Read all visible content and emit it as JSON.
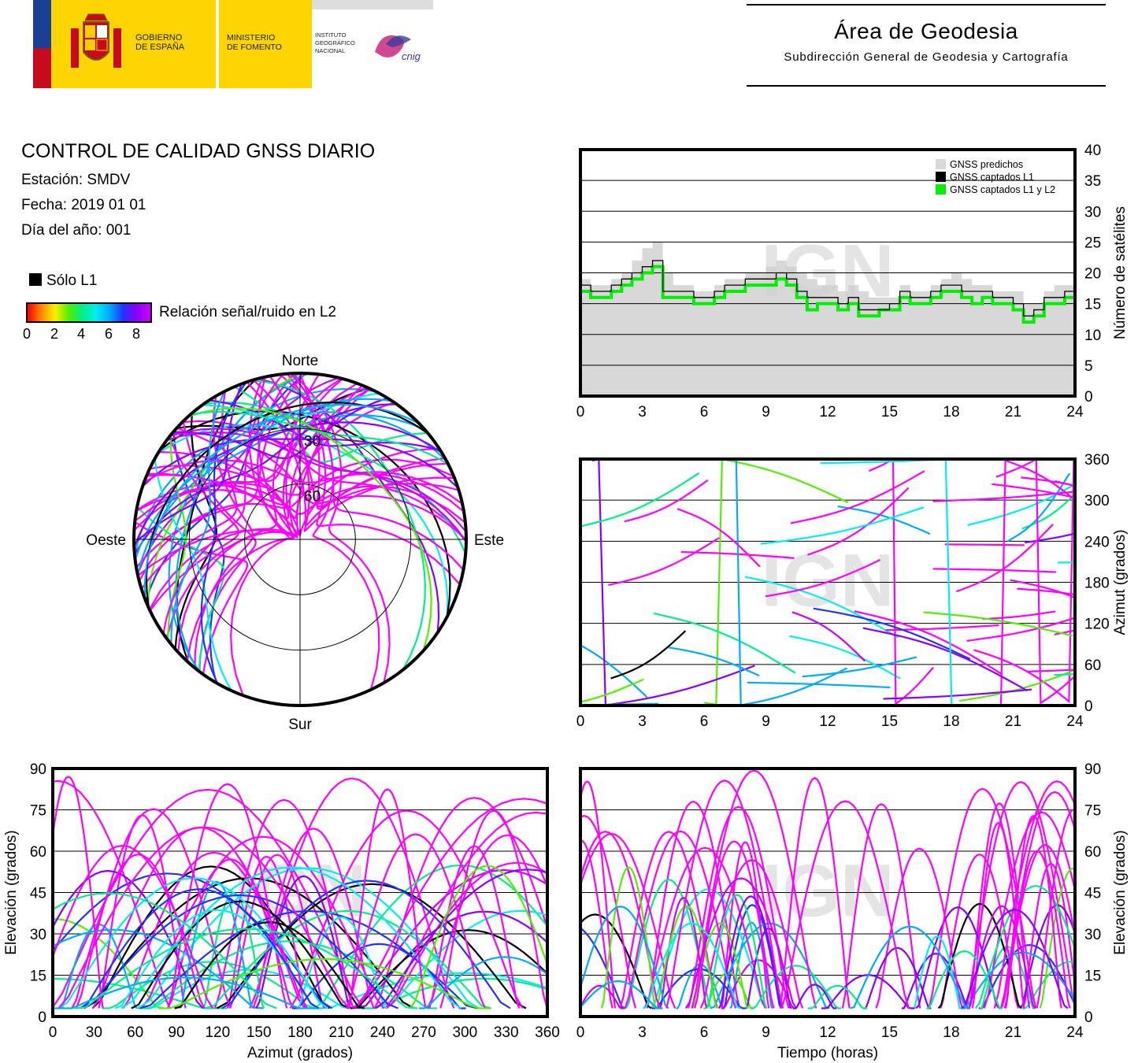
{
  "header": {
    "gov_text": [
      "GOBIERNO",
      "DE ESPAÑA"
    ],
    "ministry_text": [
      "MINISTERIO",
      "DE FOMENTO"
    ],
    "institute_text": [
      "INSTITUTO",
      "GEOGRÁFICO",
      "NACIONAL"
    ],
    "institute_mark": "cnig",
    "area_title": "Área de Geodesia",
    "area_subtitle": "Subdirección General de Geodesia y Cartografía"
  },
  "report": {
    "title": "CONTROL DE CALIDAD GNSS DIARIO",
    "station": "Estación: SMDV",
    "date": "Fecha: 2019 01 01",
    "doy": "Día del año: 001"
  },
  "legend": {
    "l1_only": "Sólo L1",
    "snr_label": "Relación señal/ruido en L2",
    "snr_ticks": [
      "0",
      "2",
      "4",
      "6",
      "8"
    ]
  },
  "colors": {
    "predicted": "#d8d8d8",
    "l1": "#000000",
    "l1l2": "#00ee00",
    "high_snr": "#ff00ff"
  },
  "watermark": "IGN",
  "chart_data": [
    {
      "type": "area",
      "name": "satellite-count",
      "ylabel": "Número de satélites",
      "xlim": [
        0,
        24
      ],
      "ylim": [
        0,
        40
      ],
      "x_ticks": [
        "0",
        "3",
        "6",
        "9",
        "12",
        "15",
        "18",
        "21",
        "24"
      ],
      "y_ticks": [
        "0",
        "5",
        "10",
        "15",
        "20",
        "25",
        "30",
        "35",
        "40"
      ],
      "legend_entries": [
        "GNSS predichos",
        "GNSS captados L1",
        "GNSS captados L1 y L2"
      ],
      "legend_position": "top-right",
      "grid": true,
      "x": [
        0,
        0.5,
        1,
        1.5,
        2,
        2.5,
        3,
        3.5,
        4,
        4.5,
        5,
        5.5,
        6,
        6.5,
        7,
        7.5,
        8,
        8.5,
        9,
        9.5,
        10,
        10.5,
        11,
        11.5,
        12,
        12.5,
        13,
        13.5,
        14,
        14.5,
        15,
        15.5,
        16,
        16.5,
        17,
        17.5,
        18,
        18.5,
        19,
        19.5,
        20,
        20.5,
        21,
        21.5,
        22,
        22.5,
        23,
        23.5,
        24
      ],
      "series": [
        {
          "name": "GNSS predichos",
          "values": [
            19,
            18,
            18,
            19,
            20,
            22,
            24,
            25,
            20,
            18,
            18,
            17,
            17,
            18,
            19,
            19,
            20,
            20,
            21,
            22,
            21,
            20,
            19,
            18,
            18,
            17,
            18,
            17,
            16,
            16,
            16,
            18,
            17,
            17,
            18,
            19,
            20,
            19,
            18,
            18,
            17,
            17,
            17,
            15,
            15,
            17,
            18,
            18,
            19
          ]
        },
        {
          "name": "GNSS captados L1",
          "values": [
            18,
            17,
            17,
            18,
            19,
            20,
            21,
            22,
            17,
            17,
            17,
            16,
            16,
            17,
            18,
            18,
            19,
            19,
            19,
            20,
            19,
            17,
            16,
            16,
            16,
            15,
            16,
            14,
            14,
            14,
            15,
            17,
            16,
            16,
            17,
            18,
            18,
            17,
            17,
            17,
            16,
            16,
            15,
            13,
            14,
            16,
            16,
            17,
            18
          ]
        },
        {
          "name": "GNSS captados L1 y L2",
          "values": [
            17,
            16,
            16,
            17,
            18,
            19,
            20,
            21,
            16,
            16,
            16,
            15,
            15,
            16,
            17,
            17,
            18,
            18,
            18,
            19,
            18,
            16,
            14,
            15,
            15,
            14,
            15,
            13,
            13,
            14,
            14,
            16,
            15,
            15,
            16,
            17,
            17,
            16,
            15,
            16,
            15,
            15,
            14,
            12,
            13,
            15,
            15,
            16,
            17
          ]
        }
      ]
    },
    {
      "type": "scatter",
      "name": "azimuth-vs-time",
      "ylabel": "Azimut (grados)",
      "xlim": [
        0,
        24
      ],
      "ylim": [
        0,
        360
      ],
      "x_ticks": [
        "0",
        "3",
        "6",
        "9",
        "12",
        "15",
        "18",
        "21",
        "24"
      ],
      "y_ticks": [
        "0",
        "60",
        "120",
        "180",
        "240",
        "300",
        "360"
      ],
      "grid": true
    },
    {
      "type": "scatter",
      "name": "skyplot",
      "directions": {
        "north": "Norte",
        "south": "Sur",
        "east": "Este",
        "west": "Oeste"
      },
      "ring_labels": [
        "30",
        "60"
      ],
      "elevation_rings": [
        0,
        30,
        60
      ]
    },
    {
      "type": "scatter",
      "name": "elevation-vs-azimuth",
      "xlabel": "Azimut (grados)",
      "ylabel": "Elevación (grados)",
      "xlim": [
        0,
        360
      ],
      "ylim": [
        0,
        90
      ],
      "x_ticks": [
        "0",
        "30",
        "60",
        "90",
        "120",
        "150",
        "180",
        "210",
        "240",
        "270",
        "300",
        "330",
        "360"
      ],
      "y_ticks": [
        "0",
        "15",
        "30",
        "45",
        "60",
        "75",
        "90"
      ],
      "grid": true
    },
    {
      "type": "scatter",
      "name": "elevation-vs-time",
      "xlabel": "Tiempo (horas)",
      "ylabel": "Elevación (grados)",
      "xlim": [
        0,
        24
      ],
      "ylim": [
        0,
        90
      ],
      "x_ticks": [
        "0",
        "3",
        "6",
        "9",
        "12",
        "15",
        "18",
        "21",
        "24"
      ],
      "y_ticks": [
        "0",
        "15",
        "30",
        "45",
        "60",
        "75",
        "90"
      ],
      "grid": true
    }
  ]
}
